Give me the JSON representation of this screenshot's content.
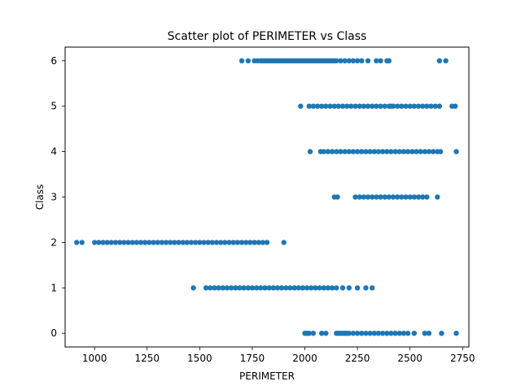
{
  "chart_data": {
    "type": "scatter",
    "title": "Scatter plot of PERIMETER vs Class",
    "xlabel": "PERIMETER",
    "ylabel": "Class",
    "xlim": [
      860,
      2780
    ],
    "ylim": [
      -0.3,
      6.3
    ],
    "xticks": [
      1000,
      1250,
      1500,
      1750,
      2000,
      2250,
      2500,
      2750
    ],
    "yticks": [
      0,
      1,
      2,
      3,
      4,
      5,
      6
    ],
    "grid": false,
    "legend": "none",
    "point_color": "#1f77b4",
    "series": [
      {
        "x": [
          1700,
          1730,
          1760,
          1775,
          1790,
          1800,
          1810,
          1820,
          1830,
          1840,
          1850,
          1860,
          1870,
          1880,
          1890,
          1900,
          1910,
          1920,
          1930,
          1940,
          1950,
          1960,
          1970,
          1980,
          1990,
          2000,
          2010,
          2020,
          2030,
          2040,
          2050,
          2060,
          2070,
          2080,
          2090,
          2100,
          2110,
          2120,
          2130,
          2140,
          2150,
          2170,
          2190,
          2210,
          2230,
          2250,
          2270,
          2300,
          2340,
          2360,
          2390,
          2400,
          2640,
          2670,
          1980,
          2020,
          2040,
          2060,
          2080,
          2100,
          2120,
          2140,
          2160,
          2180,
          2200,
          2220,
          2240,
          2260,
          2280,
          2300,
          2320,
          2340,
          2360,
          2380,
          2400,
          2410,
          2420,
          2440,
          2460,
          2480,
          2500,
          2520,
          2540,
          2560,
          2580,
          2600,
          2620,
          2640,
          2700,
          2715,
          2025,
          2075,
          2090,
          2110,
          2130,
          2150,
          2170,
          2190,
          2210,
          2230,
          2250,
          2270,
          2290,
          2310,
          2330,
          2350,
          2370,
          2390,
          2410,
          2430,
          2450,
          2470,
          2490,
          2510,
          2530,
          2550,
          2570,
          2590,
          2610,
          2630,
          2645,
          2720,
          2140,
          2155,
          2240,
          2260,
          2280,
          2300,
          2320,
          2340,
          2360,
          2380,
          2400,
          2420,
          2440,
          2460,
          2480,
          2500,
          2520,
          2540,
          2560,
          2580,
          2630,
          915,
          940,
          1000,
          1020,
          1040,
          1060,
          1080,
          1100,
          1120,
          1140,
          1160,
          1180,
          1200,
          1220,
          1240,
          1260,
          1280,
          1300,
          1320,
          1340,
          1360,
          1380,
          1400,
          1420,
          1440,
          1460,
          1480,
          1500,
          1520,
          1540,
          1560,
          1580,
          1600,
          1620,
          1640,
          1660,
          1680,
          1700,
          1720,
          1740,
          1760,
          1780,
          1800,
          1820,
          1900,
          1470,
          1530,
          1550,
          1570,
          1590,
          1610,
          1630,
          1650,
          1670,
          1690,
          1710,
          1730,
          1750,
          1770,
          1790,
          1810,
          1830,
          1850,
          1870,
          1890,
          1910,
          1930,
          1950,
          1970,
          1990,
          2010,
          2030,
          2050,
          2070,
          2090,
          2110,
          2130,
          2150,
          2180,
          2210,
          2250,
          2290,
          2320,
          2000,
          2010,
          2020,
          2040,
          2080,
          2100,
          2150,
          2160,
          2170,
          2180,
          2190,
          2200,
          2210,
          2230,
          2250,
          2270,
          2290,
          2310,
          2330,
          2350,
          2370,
          2390,
          2410,
          2430,
          2450,
          2470,
          2490,
          2520,
          2570,
          2590,
          2650,
          2720
        ],
        "y": [
          6,
          6,
          6,
          6,
          6,
          6,
          6,
          6,
          6,
          6,
          6,
          6,
          6,
          6,
          6,
          6,
          6,
          6,
          6,
          6,
          6,
          6,
          6,
          6,
          6,
          6,
          6,
          6,
          6,
          6,
          6,
          6,
          6,
          6,
          6,
          6,
          6,
          6,
          6,
          6,
          6,
          6,
          6,
          6,
          6,
          6,
          6,
          6,
          6,
          6,
          6,
          6,
          6,
          6,
          5,
          5,
          5,
          5,
          5,
          5,
          5,
          5,
          5,
          5,
          5,
          5,
          5,
          5,
          5,
          5,
          5,
          5,
          5,
          5,
          5,
          5,
          5,
          5,
          5,
          5,
          5,
          5,
          5,
          5,
          5,
          5,
          5,
          5,
          5,
          5,
          4,
          4,
          4,
          4,
          4,
          4,
          4,
          4,
          4,
          4,
          4,
          4,
          4,
          4,
          4,
          4,
          4,
          4,
          4,
          4,
          4,
          4,
          4,
          4,
          4,
          4,
          4,
          4,
          4,
          4,
          4,
          4,
          3,
          3,
          3,
          3,
          3,
          3,
          3,
          3,
          3,
          3,
          3,
          3,
          3,
          3,
          3,
          3,
          3,
          3,
          3,
          3,
          3,
          2,
          2,
          2,
          2,
          2,
          2,
          2,
          2,
          2,
          2,
          2,
          2,
          2,
          2,
          2,
          2,
          2,
          2,
          2,
          2,
          2,
          2,
          2,
          2,
          2,
          2,
          2,
          2,
          2,
          2,
          2,
          2,
          2,
          2,
          2,
          2,
          2,
          2,
          2,
          2,
          2,
          2,
          2,
          2,
          2,
          1,
          1,
          1,
          1,
          1,
          1,
          1,
          1,
          1,
          1,
          1,
          1,
          1,
          1,
          1,
          1,
          1,
          1,
          1,
          1,
          1,
          1,
          1,
          1,
          1,
          1,
          1,
          1,
          1,
          1,
          1,
          1,
          1,
          1,
          1,
          1,
          1,
          1,
          0,
          0,
          0,
          0,
          0,
          0,
          0,
          0,
          0,
          0,
          0,
          0,
          0,
          0,
          0,
          0,
          0,
          0,
          0,
          0,
          0,
          0,
          0,
          0,
          0,
          0,
          0,
          0,
          0,
          0,
          0,
          0
        ]
      }
    ]
  }
}
